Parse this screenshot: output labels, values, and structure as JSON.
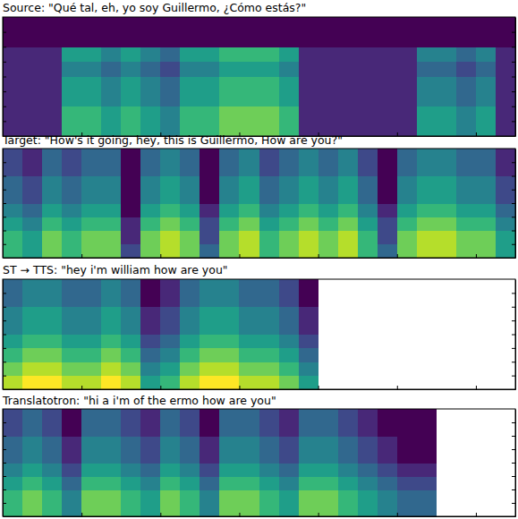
{
  "chart_data": [
    {
      "type": "heatmap",
      "title": "Source: \"Qué tal, eh, yo soy Guillermo, ¿Cómo estás?\"",
      "xlim": [
        0,
        6.5
      ],
      "ylim": [
        0,
        80
      ],
      "xticks": [
        1,
        2,
        3,
        4,
        5,
        6
      ],
      "yticks": [
        10,
        20,
        30,
        40,
        50,
        60,
        70
      ],
      "tick_labels": false,
      "grid": false,
      "zlim": [
        0,
        9
      ],
      "x": [
        0.125,
        0.375,
        0.625,
        0.875,
        1.125,
        1.375,
        1.625,
        1.875,
        2.125,
        2.375,
        2.625,
        2.875,
        3.125,
        3.375,
        3.625,
        3.875,
        4.125,
        4.375,
        4.625,
        4.875,
        5.125,
        5.375,
        5.625,
        5.875,
        6.125,
        6.375
      ],
      "y": [
        5,
        15,
        25,
        35,
        45,
        55,
        65,
        75
      ],
      "cells": [
        [
          1,
          1,
          1,
          6,
          6,
          5,
          6,
          5,
          4,
          6,
          6,
          7,
          7,
          7,
          6,
          1,
          1,
          1,
          1,
          1,
          1,
          5,
          5,
          4,
          5,
          1
        ],
        [
          1,
          1,
          1,
          6,
          6,
          5,
          6,
          5,
          4,
          6,
          6,
          7,
          7,
          7,
          6,
          1,
          1,
          1,
          1,
          1,
          1,
          5,
          5,
          4,
          5,
          1
        ],
        [
          1,
          1,
          1,
          5,
          5,
          4,
          5,
          4,
          3,
          5,
          5,
          6,
          6,
          6,
          5,
          1,
          1,
          1,
          1,
          1,
          1,
          4,
          4,
          3,
          4,
          1
        ],
        [
          1,
          1,
          1,
          5,
          5,
          4,
          5,
          4,
          3,
          5,
          5,
          6,
          6,
          6,
          5,
          1,
          1,
          1,
          1,
          1,
          1,
          4,
          4,
          3,
          4,
          1
        ],
        [
          1,
          1,
          1,
          4,
          4,
          3,
          4,
          3,
          2,
          4,
          4,
          5,
          5,
          5,
          4,
          1,
          1,
          1,
          1,
          1,
          1,
          3,
          3,
          2,
          3,
          1
        ],
        [
          1,
          1,
          1,
          5,
          5,
          4,
          5,
          4,
          3,
          5,
          5,
          6,
          6,
          6,
          5,
          1,
          1,
          1,
          1,
          1,
          1,
          4,
          4,
          3,
          4,
          1
        ],
        [
          0,
          0,
          0,
          0,
          0,
          0,
          0,
          0,
          0,
          0,
          0,
          0,
          0,
          0,
          0,
          0,
          0,
          0,
          0,
          0,
          0,
          0,
          0,
          0,
          0,
          0
        ],
        [
          0,
          0,
          0,
          0,
          0,
          0,
          0,
          0,
          0,
          0,
          0,
          0,
          0,
          0,
          0,
          0,
          0,
          0,
          0,
          0,
          0,
          0,
          0,
          0,
          0,
          0
        ]
      ]
    },
    {
      "type": "heatmap",
      "title": "Target: \"How's it going, hey, this is Guillermo, How are you?\"",
      "xlim": [
        0,
        6.5
      ],
      "ylim": [
        0,
        80
      ],
      "xticks": [
        1,
        2,
        3,
        4,
        5,
        6
      ],
      "yticks": [
        10,
        20,
        30,
        40,
        50,
        60,
        70
      ],
      "tick_labels": false,
      "grid": false,
      "zlim": [
        0,
        9
      ],
      "x": [
        0.125,
        0.375,
        0.625,
        0.875,
        1.125,
        1.375,
        1.625,
        1.875,
        2.125,
        2.375,
        2.625,
        2.875,
        3.125,
        3.375,
        3.625,
        3.875,
        4.125,
        4.375,
        4.625,
        4.875,
        5.125,
        5.375,
        5.625,
        5.875,
        6.125,
        6.375
      ],
      "y": [
        5,
        15,
        25,
        35,
        45,
        55,
        65,
        75
      ],
      "cells": [
        [
          6,
          5,
          7,
          6,
          7,
          7,
          2,
          7,
          8,
          7,
          3,
          7,
          8,
          6,
          7,
          8,
          7,
          8,
          6,
          3,
          7,
          8,
          8,
          7,
          7,
          5
        ],
        [
          6,
          5,
          7,
          6,
          7,
          7,
          1,
          7,
          8,
          7,
          2,
          7,
          8,
          6,
          7,
          8,
          7,
          8,
          6,
          2,
          7,
          8,
          8,
          7,
          7,
          5
        ],
        [
          5,
          4,
          6,
          5,
          6,
          6,
          1,
          6,
          7,
          6,
          2,
          6,
          7,
          5,
          6,
          7,
          6,
          7,
          5,
          2,
          6,
          7,
          7,
          6,
          6,
          4
        ],
        [
          4,
          3,
          5,
          4,
          5,
          5,
          0,
          5,
          6,
          5,
          1,
          5,
          6,
          4,
          5,
          6,
          5,
          6,
          4,
          1,
          5,
          6,
          6,
          5,
          5,
          3
        ],
        [
          3,
          2,
          4,
          3,
          4,
          4,
          0,
          4,
          5,
          4,
          0,
          4,
          5,
          3,
          4,
          5,
          4,
          5,
          3,
          0,
          4,
          5,
          5,
          4,
          4,
          2
        ],
        [
          3,
          2,
          4,
          3,
          4,
          4,
          0,
          4,
          5,
          4,
          0,
          4,
          5,
          3,
          4,
          5,
          4,
          5,
          3,
          0,
          4,
          5,
          5,
          4,
          4,
          2
        ],
        [
          2,
          1,
          3,
          2,
          3,
          3,
          0,
          3,
          4,
          3,
          0,
          3,
          4,
          2,
          3,
          4,
          3,
          4,
          2,
          0,
          3,
          4,
          4,
          3,
          3,
          1
        ],
        [
          2,
          1,
          3,
          2,
          3,
          3,
          0,
          3,
          4,
          3,
          0,
          3,
          4,
          2,
          3,
          4,
          3,
          4,
          2,
          0,
          3,
          4,
          4,
          3,
          3,
          1
        ]
      ]
    },
    {
      "type": "heatmap",
      "title": "ST → TTS: \"hey i'm william how are you\"",
      "xlim": [
        0,
        6.5
      ],
      "ylim": [
        0,
        80
      ],
      "xticks": [
        1,
        2,
        3,
        4,
        5,
        6
      ],
      "yticks": [
        10,
        20,
        30,
        40,
        50,
        60,
        70
      ],
      "tick_labels": false,
      "grid": false,
      "zlim": [
        0,
        9
      ],
      "x": [
        0.125,
        0.375,
        0.625,
        0.875,
        1.125,
        1.375,
        1.625,
        1.875,
        2.125,
        2.375,
        2.625,
        2.875,
        3.125,
        3.375,
        3.625,
        3.875
      ],
      "y": [
        5,
        15,
        25,
        35,
        45,
        55,
        65,
        75
      ],
      "cells": [
        [
          8,
          9,
          9,
          8,
          8,
          9,
          8,
          5,
          6,
          8,
          9,
          9,
          8,
          8,
          7,
          5
        ],
        [
          7,
          8,
          8,
          7,
          7,
          8,
          7,
          4,
          5,
          7,
          8,
          8,
          7,
          7,
          6,
          4
        ],
        [
          6,
          7,
          7,
          6,
          6,
          7,
          6,
          3,
          4,
          6,
          7,
          7,
          6,
          6,
          5,
          3
        ],
        [
          5,
          6,
          6,
          5,
          5,
          6,
          5,
          2,
          3,
          5,
          6,
          6,
          5,
          5,
          4,
          2
        ],
        [
          4,
          5,
          5,
          4,
          4,
          5,
          4,
          1,
          2,
          4,
          5,
          5,
          4,
          4,
          3,
          1
        ],
        [
          4,
          5,
          5,
          4,
          4,
          5,
          4,
          1,
          2,
          4,
          5,
          5,
          4,
          4,
          3,
          1
        ],
        [
          3,
          4,
          4,
          3,
          3,
          4,
          3,
          0,
          1,
          3,
          4,
          4,
          3,
          3,
          2,
          0
        ],
        [
          3,
          4,
          4,
          3,
          3,
          4,
          3,
          0,
          1,
          3,
          4,
          4,
          3,
          3,
          2,
          0
        ]
      ]
    },
    {
      "type": "heatmap",
      "title": "Translatotron: \"hi a i'm of the ermo how are you\"",
      "xlim": [
        0,
        6.5
      ],
      "ylim": [
        0,
        80
      ],
      "xticks": [
        1,
        2,
        3,
        4,
        5,
        6
      ],
      "yticks": [
        10,
        20,
        30,
        40,
        50,
        60,
        70
      ],
      "tick_labels": false,
      "grid": false,
      "zlim": [
        0,
        9
      ],
      "x": [
        0.125,
        0.375,
        0.625,
        0.875,
        1.125,
        1.375,
        1.625,
        1.875,
        2.125,
        2.375,
        2.625,
        2.875,
        3.125,
        3.375,
        3.625,
        3.875,
        4.125,
        4.375,
        4.625,
        4.875,
        5.125,
        5.375
      ],
      "y": [
        5,
        15,
        25,
        35,
        45,
        55,
        65,
        75
      ],
      "cells": [
        [
          6,
          7,
          6,
          4,
          7,
          7,
          6,
          5,
          7,
          6,
          4,
          7,
          7,
          6,
          5,
          7,
          7,
          6,
          5,
          4,
          3,
          3
        ],
        [
          6,
          7,
          6,
          4,
          7,
          7,
          6,
          5,
          7,
          6,
          4,
          7,
          7,
          6,
          5,
          7,
          7,
          6,
          5,
          4,
          3,
          3
        ],
        [
          5,
          6,
          5,
          3,
          6,
          6,
          5,
          4,
          6,
          5,
          3,
          6,
          6,
          5,
          4,
          6,
          6,
          5,
          4,
          3,
          2,
          2
        ],
        [
          4,
          5,
          4,
          2,
          5,
          5,
          4,
          3,
          5,
          4,
          2,
          5,
          5,
          4,
          3,
          5,
          5,
          4,
          3,
          2,
          1,
          1
        ],
        [
          3,
          4,
          3,
          1,
          4,
          4,
          3,
          2,
          4,
          3,
          1,
          4,
          4,
          3,
          2,
          4,
          4,
          3,
          2,
          1,
          0,
          0
        ],
        [
          3,
          4,
          3,
          1,
          4,
          4,
          3,
          2,
          4,
          3,
          1,
          4,
          4,
          3,
          2,
          4,
          4,
          3,
          2,
          1,
          0,
          0
        ],
        [
          2,
          3,
          2,
          0,
          3,
          3,
          2,
          1,
          3,
          2,
          0,
          3,
          3,
          2,
          1,
          3,
          3,
          2,
          1,
          0,
          0,
          0
        ],
        [
          2,
          3,
          2,
          0,
          3,
          3,
          2,
          1,
          3,
          2,
          0,
          3,
          3,
          2,
          1,
          3,
          3,
          2,
          1,
          0,
          0,
          0
        ]
      ]
    }
  ]
}
